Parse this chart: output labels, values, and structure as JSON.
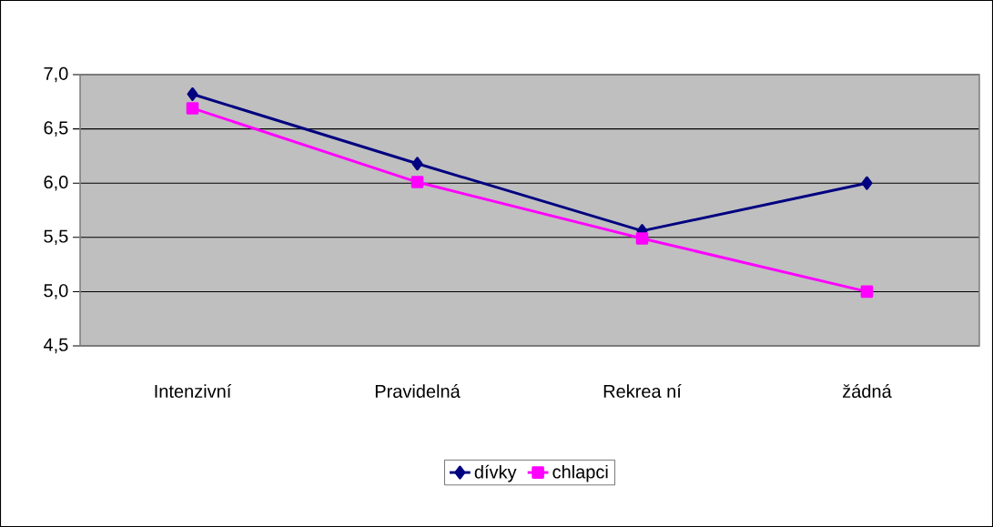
{
  "chart_data": {
    "type": "line",
    "categories": [
      "Intenzivní",
      "Pravidelná",
      "Rekrea ní",
      "žádná"
    ],
    "series": [
      {
        "name": "dívky",
        "color": "#000080",
        "marker": "diamond",
        "values": [
          6.82,
          6.18,
          5.56,
          6.0
        ]
      },
      {
        "name": "chlapci",
        "color": "#ff00ff",
        "marker": "square",
        "values": [
          6.69,
          6.01,
          5.49,
          5.0
        ]
      }
    ],
    "ylim": [
      4.5,
      7.0
    ],
    "yticks": [
      {
        "value": 4.5,
        "label": "4,5"
      },
      {
        "value": 5.0,
        "label": "5,0"
      },
      {
        "value": 5.5,
        "label": "5,5"
      },
      {
        "value": 6.0,
        "label": "6,0"
      },
      {
        "value": 6.5,
        "label": "6,5"
      },
      {
        "value": 7.0,
        "label": "7,0"
      }
    ],
    "grid": "y",
    "legend": "bottom",
    "line_style": "solid"
  }
}
